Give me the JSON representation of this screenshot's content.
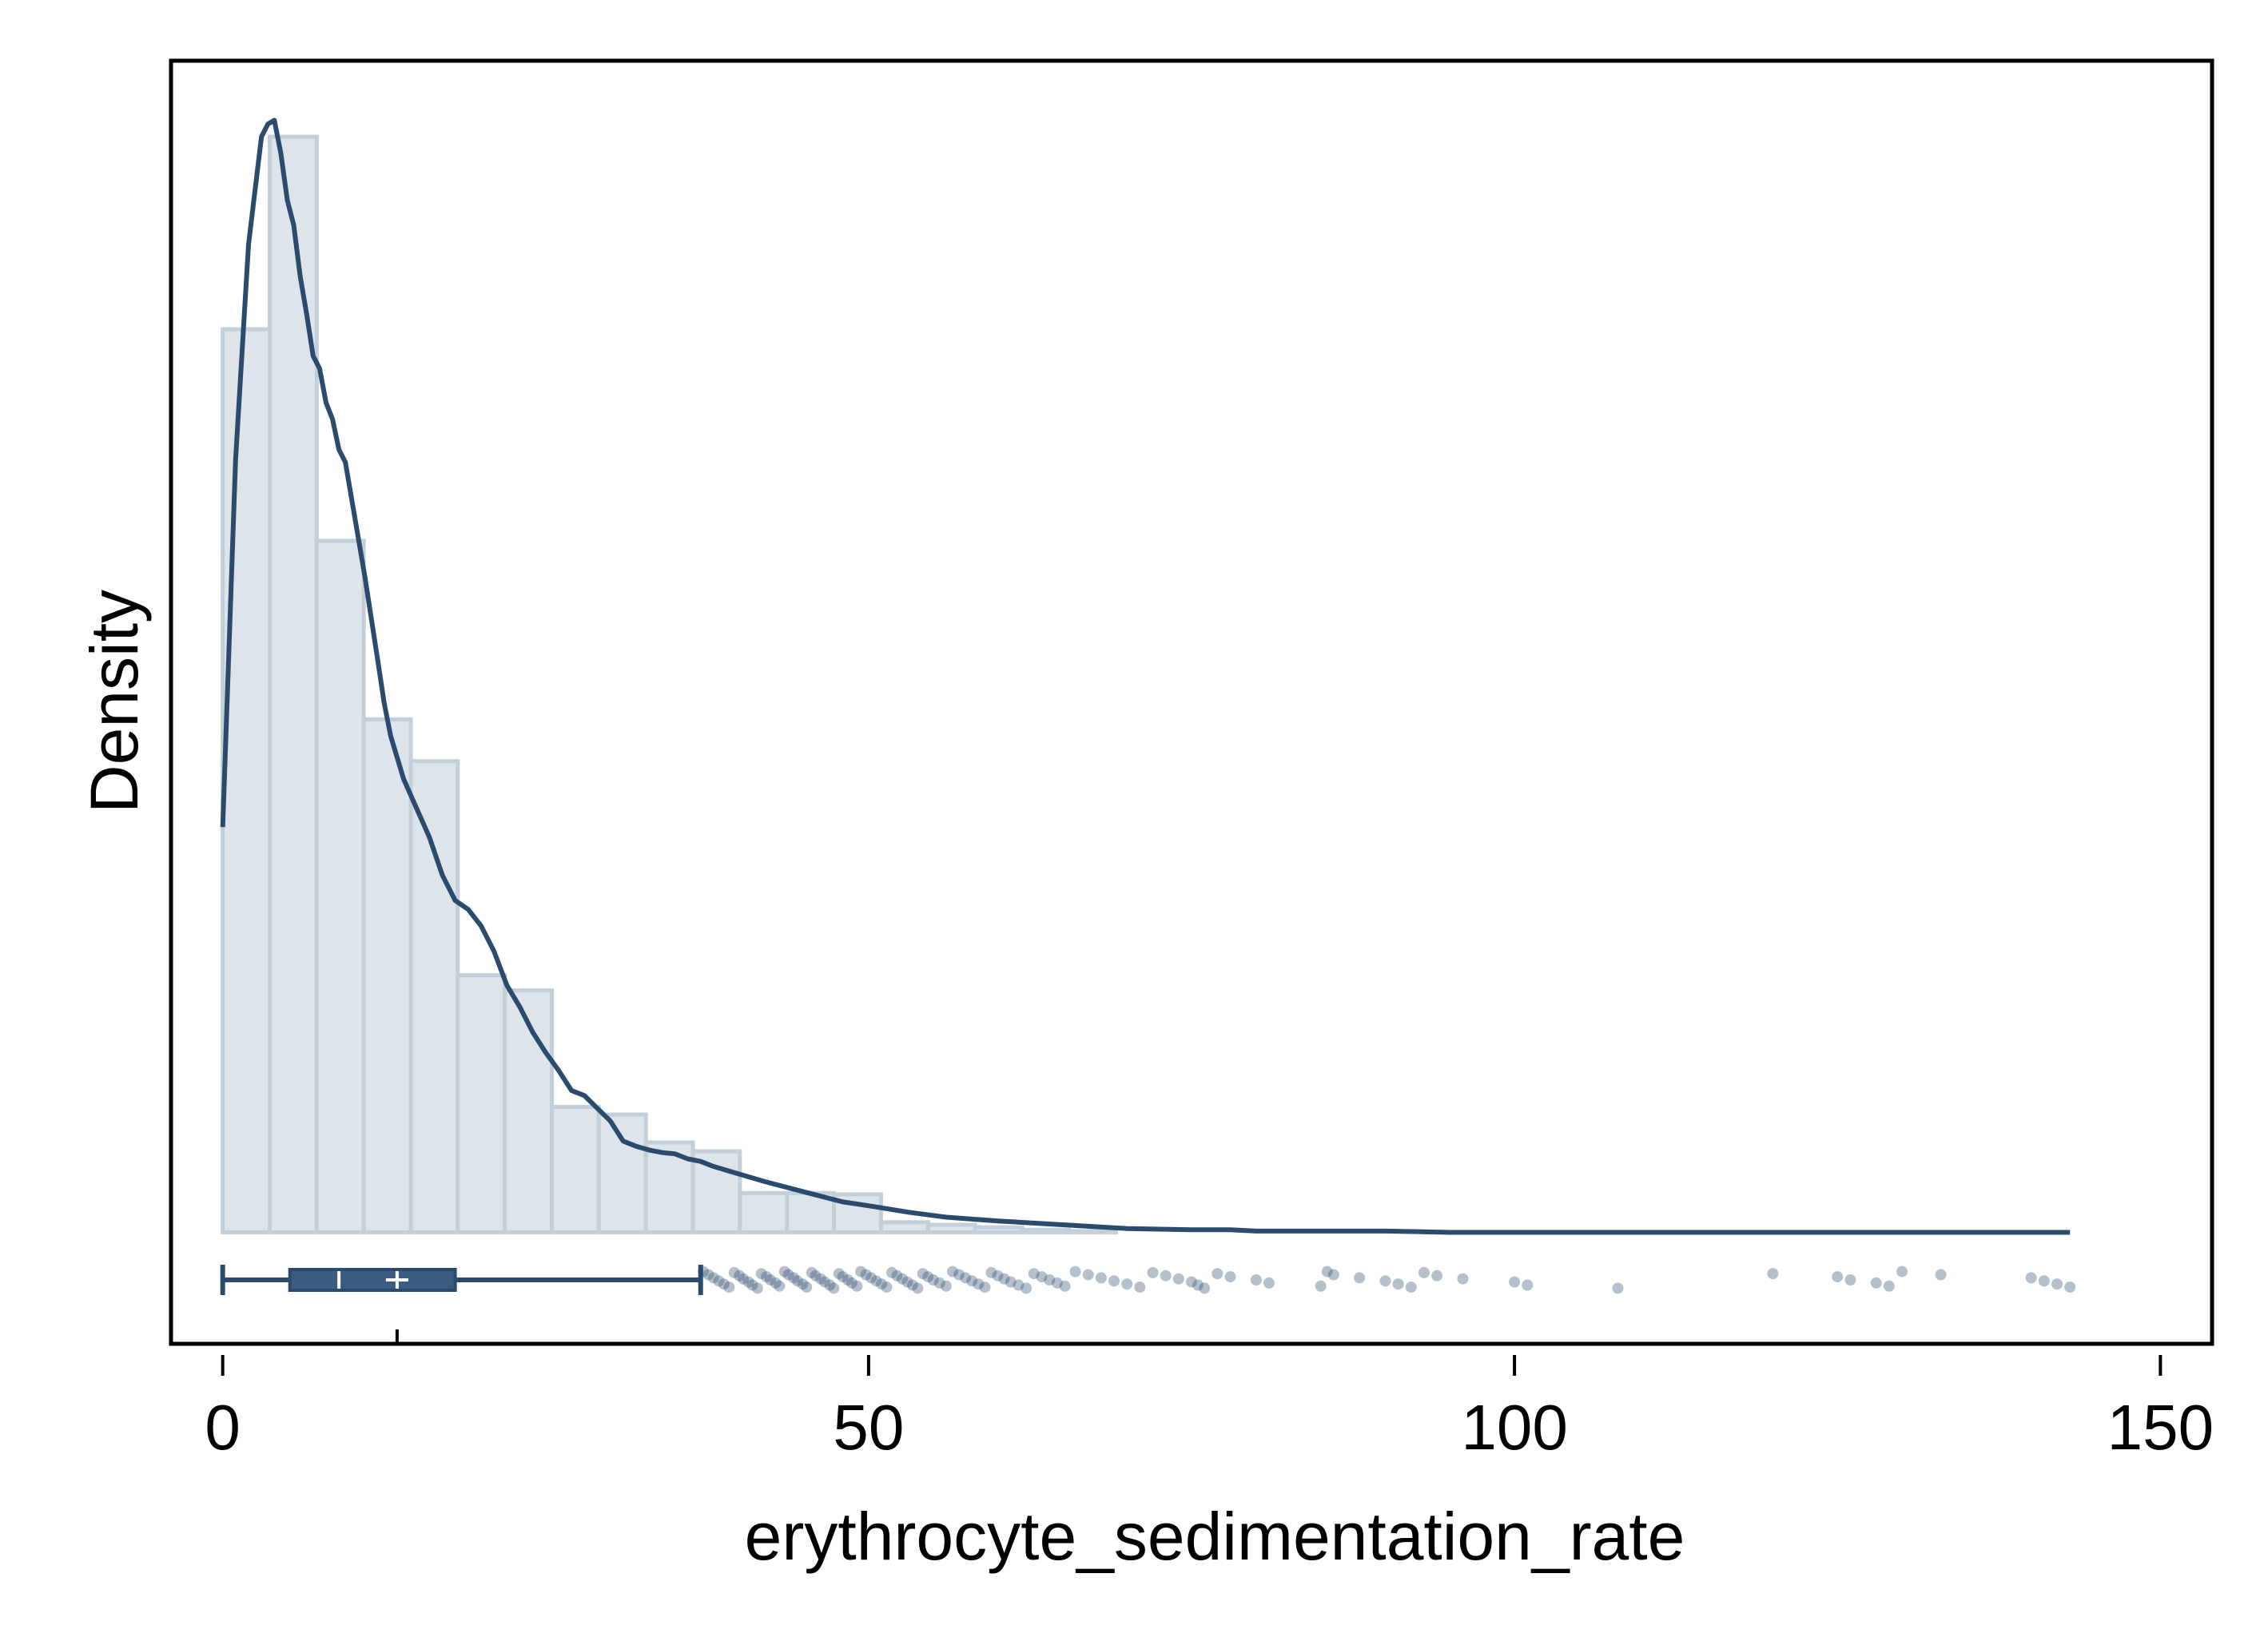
{
  "chart_data": {
    "type": "histogram",
    "xlabel": "erythrocyte_sedimentation_rate",
    "ylabel": "Density",
    "xlim": [
      -4,
      154
    ],
    "ylim": [
      -0.0088,
      0.0925
    ],
    "x_ticks": [
      0,
      50,
      100,
      150
    ],
    "x_tick_labels": [
      "0",
      "50",
      "100",
      "150"
    ],
    "y_ticks_shown": false,
    "grid": false,
    "legend": "none",
    "colors": {
      "bar_fill": "#dde4ea",
      "bar_stroke": "#c3cfd9",
      "line": "#2a4b6e",
      "box": "#3a5c80",
      "points": "#2a4b6e",
      "frame": "#000000"
    },
    "histogram": {
      "bin_width": 3.64,
      "bins": [
        {
          "x0": 0.0,
          "density": 0.0713
        },
        {
          "x0": 3.64,
          "density": 0.0865
        },
        {
          "x0": 7.28,
          "density": 0.0546
        },
        {
          "x0": 10.92,
          "density": 0.0405
        },
        {
          "x0": 14.56,
          "density": 0.0372
        },
        {
          "x0": 18.2,
          "density": 0.0203
        },
        {
          "x0": 21.84,
          "density": 0.0191
        },
        {
          "x0": 25.48,
          "density": 0.0099
        },
        {
          "x0": 29.12,
          "density": 0.0093
        },
        {
          "x0": 32.76,
          "density": 0.0071
        },
        {
          "x0": 36.4,
          "density": 0.0064
        },
        {
          "x0": 40.04,
          "density": 0.0031
        },
        {
          "x0": 43.68,
          "density": 0.0031
        },
        {
          "x0": 47.32,
          "density": 0.003
        },
        {
          "x0": 50.96,
          "density": 0.0008
        },
        {
          "x0": 54.6,
          "density": 0.0006
        },
        {
          "x0": 58.24,
          "density": 0.0004
        },
        {
          "x0": 61.88,
          "density": 0.0002
        },
        {
          "x0": 65.52,
          "density": 0.0001
        }
      ]
    },
    "density_curve": {
      "x": [
        0,
        1,
        2,
        3,
        3.5,
        4,
        4.5,
        5,
        5.5,
        6,
        6.5,
        7,
        7.5,
        8,
        8.5,
        9,
        9.5,
        10,
        11,
        12,
        12.5,
        13,
        14,
        15,
        16,
        17,
        18,
        19,
        20,
        21,
        22,
        23,
        24,
        25,
        26,
        27,
        28,
        29,
        30,
        31,
        32,
        33,
        34,
        35,
        36,
        37,
        38,
        40,
        42,
        45,
        48,
        50,
        53,
        56,
        60,
        65,
        70,
        75,
        78,
        80,
        85,
        90,
        95,
        100,
        110,
        120,
        130,
        135,
        140,
        143
      ],
      "y": [
        0.032,
        0.061,
        0.078,
        0.0865,
        0.0875,
        0.0878,
        0.0852,
        0.0815,
        0.0795,
        0.0755,
        0.0725,
        0.0692,
        0.0682,
        0.0655,
        0.0642,
        0.0618,
        0.0608,
        0.0578,
        0.0518,
        0.0452,
        0.0418,
        0.0392,
        0.0358,
        0.0335,
        0.0312,
        0.0282,
        0.0262,
        0.0255,
        0.0242,
        0.0222,
        0.0195,
        0.0178,
        0.0158,
        0.0142,
        0.0128,
        0.0112,
        0.0108,
        0.0098,
        0.0088,
        0.0072,
        0.0068,
        0.0065,
        0.0063,
        0.0062,
        0.0058,
        0.0056,
        0.0052,
        0.0046,
        0.004,
        0.0032,
        0.0024,
        0.0021,
        0.0016,
        0.0012,
        0.0009,
        0.0006,
        0.0003,
        0.0002,
        0.0002,
        0.0001,
        0.0001,
        0.0001,
        0.0,
        0.0,
        0.0,
        0.0,
        0.0,
        0.0,
        0.0,
        0.0
      ]
    },
    "boxplot": {
      "min": 0,
      "q1": 5.2,
      "median": 9,
      "mean": 13.5,
      "q3": 18,
      "whisker_high": 37
    },
    "outliers": [
      37.2,
      37.6,
      38.0,
      38.4,
      38.8,
      39.2,
      39.6,
      40.0,
      40.3,
      40.7,
      41.0,
      41.4,
      41.7,
      42.1,
      42.4,
      42.8,
      43.1,
      43.5,
      43.8,
      44.2,
      44.5,
      44.9,
      45.2,
      45.6,
      45.9,
      46.3,
      46.6,
      47.0,
      47.3,
      47.7,
      48.0,
      48.4,
      48.7,
      49.1,
      49.4,
      49.8,
      50.2,
      50.6,
      51.0,
      51.4,
      51.8,
      52.2,
      52.6,
      53.0,
      53.4,
      53.8,
      54.2,
      54.6,
      55.0,
      55.5,
      56.0,
      56.5,
      57.0,
      57.5,
      58.0,
      58.5,
      59.0,
      59.5,
      60.0,
      60.5,
      61.0,
      61.6,
      62.2,
      62.8,
      63.4,
      64.0,
      64.6,
      65.2,
      66.0,
      67.0,
      68.0,
      69.0,
      70.0,
      71.0,
      72.0,
      73.0,
      74.0,
      75.0,
      75.5,
      76.0,
      77.0,
      78.0,
      80.0,
      81.0,
      85.0,
      85.5,
      86.0,
      88.0,
      90.0,
      91.0,
      92.0,
      93.0,
      94.0,
      96.0,
      100.0,
      101.0,
      108.0,
      120.0,
      125.0,
      126.0,
      128.0,
      129.0,
      130.0,
      133.0,
      140.0,
      141.0,
      142.0,
      143.0
    ]
  }
}
